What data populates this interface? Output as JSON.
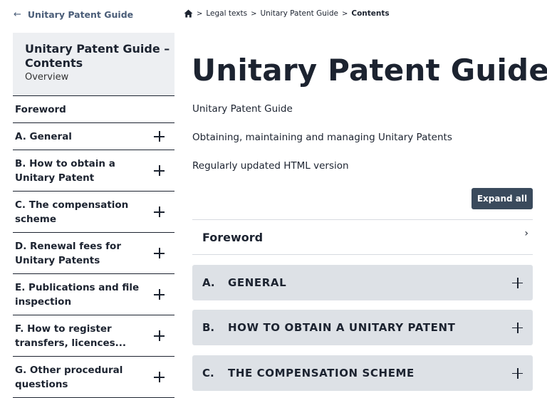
{
  "back_link": {
    "label": "Unitary Patent Guide"
  },
  "sidebar": {
    "title": "Unitary Patent Guide – Contents",
    "subtitle": "Overview",
    "items": [
      {
        "label": "Foreword"
      },
      {
        "label": "A. General"
      },
      {
        "label": "B. How to obtain a Unitary Patent"
      },
      {
        "label": "C. The compensation scheme"
      },
      {
        "label": "D. Renewal fees for Unitary Patents"
      },
      {
        "label": "E. Publications and file inspection"
      },
      {
        "label": "F. How to register transfers, licences..."
      },
      {
        "label": "G. Other procedural questions"
      }
    ]
  },
  "breadcrumb": {
    "items": [
      "Legal texts",
      "Unitary Patent Guide",
      "Contents"
    ],
    "separator": ">"
  },
  "main": {
    "title": "Unitary Patent Guide",
    "intro": [
      "Unitary Patent Guide",
      "Obtaining, maintaining and managing Unitary Patents",
      "Regularly updated HTML version"
    ],
    "expand_all": "Expand all",
    "foreword": "Foreword",
    "sections": [
      {
        "letter": "A.",
        "name": "GENERAL"
      },
      {
        "letter": "B.",
        "name": "HOW TO OBTAIN A UNITARY PATENT"
      },
      {
        "letter": "C.",
        "name": "THE COMPENSATION SCHEME"
      }
    ]
  },
  "icons": {
    "back": "arrow-left-icon",
    "home": "home-icon",
    "expand": "plus-icon",
    "chevron": "chevron-right-icon"
  }
}
